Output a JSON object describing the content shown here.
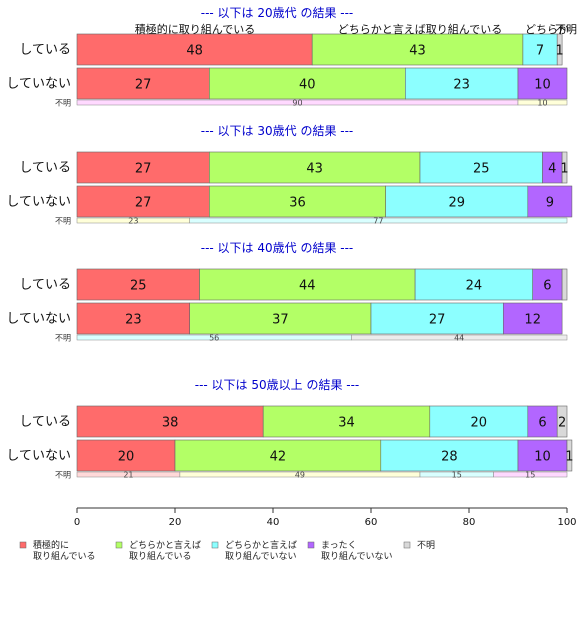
{
  "chart_data": {
    "type": "bar",
    "orientation": "horizontal",
    "stacked": "percent",
    "xlim": [
      0,
      100
    ],
    "xticks": [
      0,
      20,
      40,
      60,
      80,
      100
    ],
    "categories": [
      "積極的に取り組んでいる",
      "どちらかと言えば取り組んでいる",
      "どちらかと言えば取り組んでいない",
      "まったく取り組んでいない",
      "不明"
    ],
    "colors": {
      "main": [
        "#ff6b6b",
        "#b3ff66",
        "#8cffff",
        "#b266ff",
        "#d9d9d9"
      ],
      "unknown": [
        "#ffd9d9",
        "#ffffd9",
        "#d9ffff",
        "#ffd9ff",
        "#ececec"
      ],
      "title": "#0000cc"
    },
    "legend": {
      "position": "bottom",
      "items": [
        [
          "積極的に",
          "取り組んでいる"
        ],
        [
          "どちらかと言えば",
          "取り組んでいる"
        ],
        [
          "どちらかと言えば",
          "取り組んでいない"
        ],
        [
          "まったく",
          "取り組んでいない"
        ],
        [
          "不明"
        ]
      ]
    },
    "top_labels": [
      "積極的に取り組んでいる",
      "どちらかと言えば取り組んでいる",
      "どちらか",
      "不明"
    ],
    "groups": [
      {
        "title": "--- 以下は 20歳代 の結果 ---",
        "rows": [
          {
            "label": "している",
            "values": [
              48,
              43,
              7,
              0,
              1
            ],
            "labels": [
              "48",
              "43",
              "7",
              "",
              "1"
            ]
          },
          {
            "label": "していない",
            "values": [
              27,
              40,
              23,
              10,
              0
            ],
            "labels": [
              "27",
              "40",
              "23",
              "10",
              ""
            ]
          }
        ],
        "unknown": {
          "label": "不明",
          "values": [
            0,
            90,
            0,
            10,
            0
          ],
          "labels": [
            "",
            "90",
            "",
            "10",
            ""
          ],
          "colors": [
            "#ffd9d9",
            "#ffd9ff",
            "#d9ffff",
            "#ffffd9",
            "#ececec"
          ]
        }
      },
      {
        "title": "--- 以下は 30歳代 の結果 ---",
        "rows": [
          {
            "label": "している",
            "values": [
              27,
              43,
              25,
              4,
              1
            ],
            "labels": [
              "27",
              "43",
              "25",
              "4",
              "1"
            ]
          },
          {
            "label": "していない",
            "values": [
              27,
              36,
              29,
              9,
              0
            ],
            "labels": [
              "27",
              "36",
              "29",
              "9",
              ""
            ]
          }
        ],
        "unknown": {
          "label": "不明",
          "values": [
            23,
            77,
            0,
            0,
            0
          ],
          "labels": [
            "23",
            "77",
            "",
            "",
            ""
          ],
          "colors": [
            "#ffffd9",
            "#d9ffff",
            "#d9ffff",
            "#ffd9ff",
            "#ececec"
          ]
        }
      },
      {
        "title": "--- 以下は 40歳代 の結果 ---",
        "rows": [
          {
            "label": "している",
            "values": [
              25,
              44,
              24,
              6,
              1
            ],
            "labels": [
              "25",
              "44",
              "24",
              "6",
              ""
            ]
          },
          {
            "label": "していない",
            "values": [
              23,
              37,
              27,
              12,
              0
            ],
            "labels": [
              "23",
              "37",
              "27",
              "12",
              ""
            ]
          }
        ],
        "unknown": {
          "label": "不明",
          "values": [
            56,
            44,
            0,
            0,
            0
          ],
          "labels": [
            "56",
            "44",
            "",
            "",
            ""
          ],
          "colors": [
            "#d9ffff",
            "#ececec",
            "#d9ffff",
            "#ffd9ff",
            "#ececec"
          ]
        }
      },
      {
        "title": "--- 以下は 50歳以上 の結果 ---",
        "rows": [
          {
            "label": "している",
            "values": [
              38,
              34,
              20,
              6,
              2
            ],
            "labels": [
              "38",
              "34",
              "20",
              "6",
              "2"
            ]
          },
          {
            "label": "していない",
            "values": [
              20,
              42,
              28,
              10,
              1
            ],
            "labels": [
              "20",
              "42",
              "28",
              "10",
              "1"
            ]
          }
        ],
        "unknown": {
          "label": "不明",
          "values": [
            21,
            49,
            15,
            15,
            0
          ],
          "labels": [
            "21",
            "49",
            "15",
            "15",
            ""
          ],
          "colors": [
            "#ffd9d9",
            "#ffffd9",
            "#d9ffff",
            "#ffd9ff",
            "#ececec"
          ]
        }
      }
    ]
  }
}
